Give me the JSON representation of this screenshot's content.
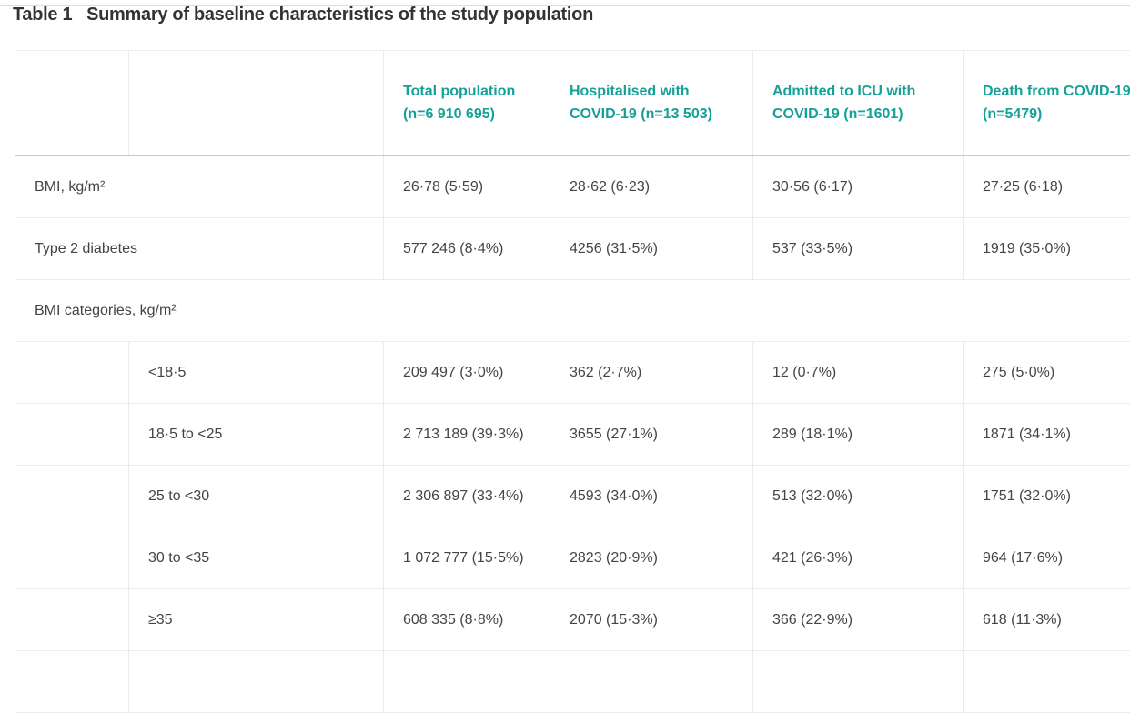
{
  "title": "Table 1   Summary of baseline characteristics of the study population",
  "table": {
    "columns": [
      "Total population (n=6 910 695)",
      "Hospitalised with COVID-19 (n=13 503)",
      "Admitted to ICU with COVID-19 (n=1601)",
      "Death from COVID-19 (n=5479)"
    ],
    "rows": [
      {
        "label": "BMI, kg/m²",
        "values": [
          "26·78 (5·59)",
          "28·62 (6·23)",
          "30·56 (6·17)",
          "27·25 (6·18)"
        ]
      },
      {
        "label": "Type 2 diabetes",
        "values": [
          "577 246 (8·4%)",
          "4256 (31·5%)",
          "537 (33·5%)",
          "1919 (35·0%)"
        ]
      },
      {
        "label": "BMI categories, kg/m²",
        "subrows": [
          {
            "label": "<18·5",
            "values": [
              "209 497 (3·0%)",
              "362 (2·7%)",
              "12 (0·7%)",
              "275 (5·0%)"
            ]
          },
          {
            "label": "18·5 to <25",
            "values": [
              "2 713 189 (39·3%)",
              "3655 (27·1%)",
              "289 (18·1%)",
              "1871 (34·1%)"
            ]
          },
          {
            "label": "25 to <30",
            "values": [
              "2 306 897 (33·4%)",
              "4593 (34·0%)",
              "513 (32·0%)",
              "1751 (32·0%)"
            ]
          },
          {
            "label": "30 to <35",
            "values": [
              "1 072 777 (15·5%)",
              "2823 (20·9%)",
              "421 (26·3%)",
              "964 (17·6%)"
            ]
          },
          {
            "label": "≥35",
            "values": [
              "608 335 (8·8%)",
              "2070 (15·3%)",
              "366 (22·9%)",
              "618 (11·3%)"
            ]
          }
        ]
      }
    ]
  }
}
